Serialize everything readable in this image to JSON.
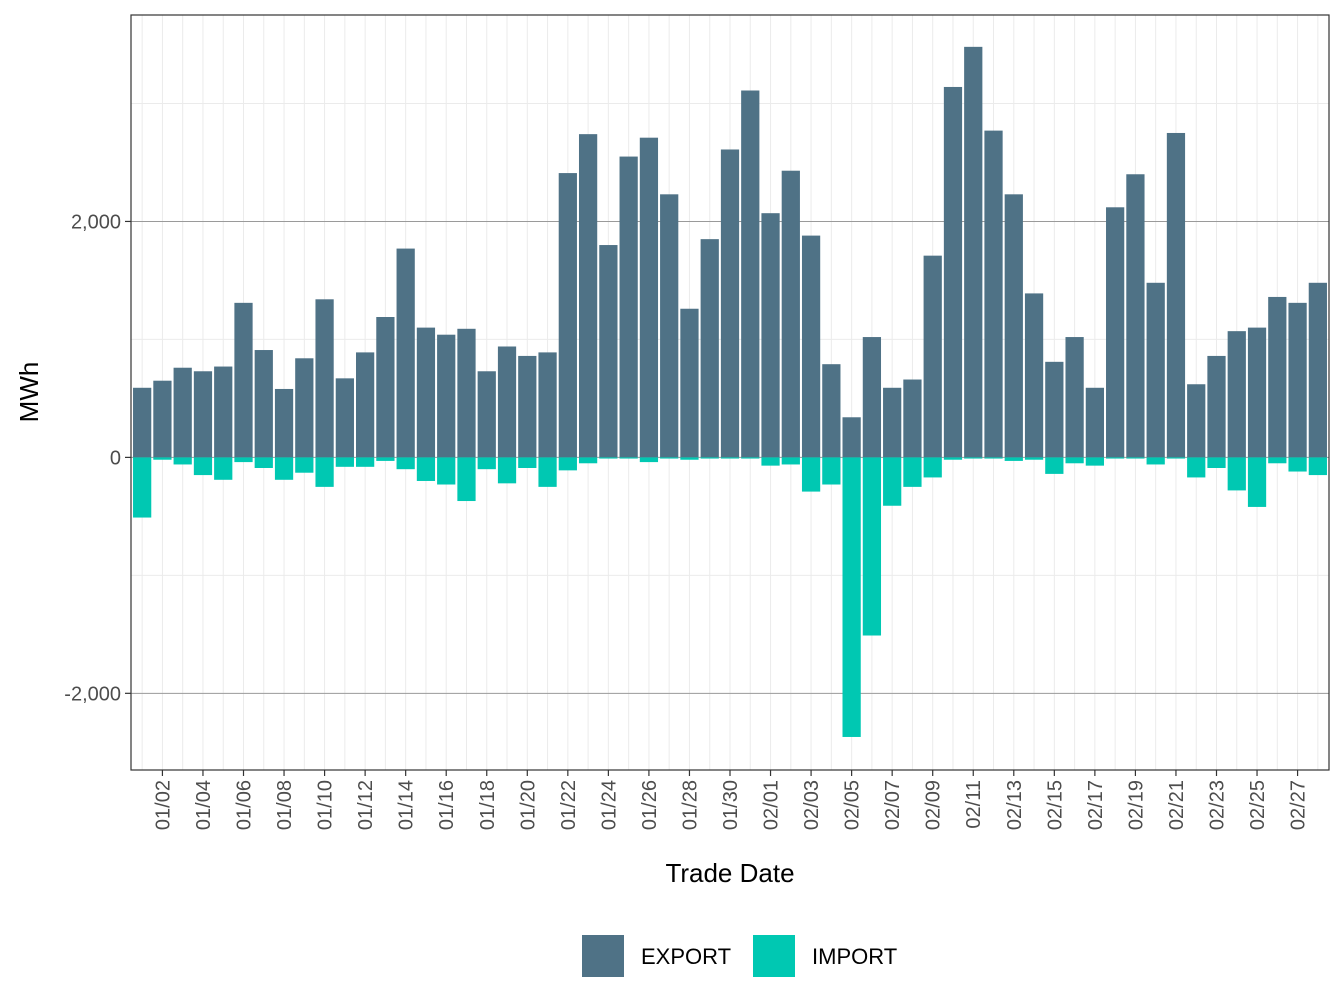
{
  "chart_data": {
    "type": "bar",
    "stacked": "diverging",
    "xlabel": "Trade Date",
    "ylabel": "MWh",
    "ylim": [
      -2650,
      3750
    ],
    "yticks": [
      -2000,
      0,
      2000
    ],
    "ytick_labels": [
      "-2,000",
      "0",
      "2,000"
    ],
    "grid": true,
    "legend_position": "bottom",
    "categories": [
      "01/01",
      "01/02",
      "01/03",
      "01/04",
      "01/05",
      "01/06",
      "01/07",
      "01/08",
      "01/09",
      "01/10",
      "01/11",
      "01/12",
      "01/13",
      "01/14",
      "01/15",
      "01/16",
      "01/17",
      "01/18",
      "01/19",
      "01/20",
      "01/21",
      "01/22",
      "01/23",
      "01/24",
      "01/25",
      "01/26",
      "01/27",
      "01/28",
      "01/29",
      "01/30",
      "01/31",
      "02/01",
      "02/02",
      "02/03",
      "02/04",
      "02/05",
      "02/06",
      "02/07",
      "02/08",
      "02/09",
      "02/10",
      "02/11",
      "02/12",
      "02/13",
      "02/14",
      "02/15",
      "02/16",
      "02/17",
      "02/18",
      "02/19",
      "02/20",
      "02/21",
      "02/22",
      "02/23",
      "02/24",
      "02/25",
      "02/26",
      "02/27",
      "02/28"
    ],
    "xtick_labels": [
      "01/02",
      "01/04",
      "01/06",
      "01/08",
      "01/10",
      "01/12",
      "01/14",
      "01/16",
      "01/18",
      "01/20",
      "01/22",
      "01/24",
      "01/26",
      "01/28",
      "01/30",
      "02/01",
      "02/03",
      "02/05",
      "02/07",
      "02/09",
      "02/11",
      "02/13",
      "02/15",
      "02/17",
      "02/19",
      "02/21",
      "02/23",
      "02/25",
      "02/27"
    ],
    "series": [
      {
        "name": "EXPORT",
        "color": "#4f7286",
        "values": [
          590,
          650,
          760,
          730,
          770,
          1310,
          910,
          580,
          840,
          1340,
          670,
          890,
          1190,
          1770,
          1100,
          1040,
          1090,
          730,
          940,
          860,
          890,
          2410,
          2740,
          1800,
          2550,
          2710,
          2230,
          1260,
          1850,
          2610,
          3110,
          2070,
          2430,
          1880,
          790,
          340,
          1020,
          590,
          660,
          1710,
          3140,
          3480,
          2770,
          2230,
          1390,
          810,
          1020,
          590,
          2120,
          2400,
          1480,
          2750,
          620,
          860,
          1070,
          1100,
          1360,
          1310,
          1480
        ]
      },
      {
        "name": "IMPORT",
        "color": "#00c8b2",
        "values": [
          -510,
          -20,
          -60,
          -150,
          -190,
          -40,
          -90,
          -190,
          -130,
          -250,
          -80,
          -80,
          -30,
          -100,
          -200,
          -230,
          -370,
          -100,
          -220,
          -90,
          -250,
          -110,
          -50,
          -10,
          -10,
          -40,
          -10,
          -20,
          -10,
          -10,
          -10,
          -70,
          -60,
          -290,
          -230,
          -2370,
          -1510,
          -410,
          -250,
          -170,
          -20,
          -10,
          -10,
          -30,
          -20,
          -140,
          -50,
          -70,
          -10,
          -10,
          -60,
          -10,
          -170,
          -90,
          -280,
          -420,
          -50,
          -120,
          -150
        ]
      }
    ]
  }
}
